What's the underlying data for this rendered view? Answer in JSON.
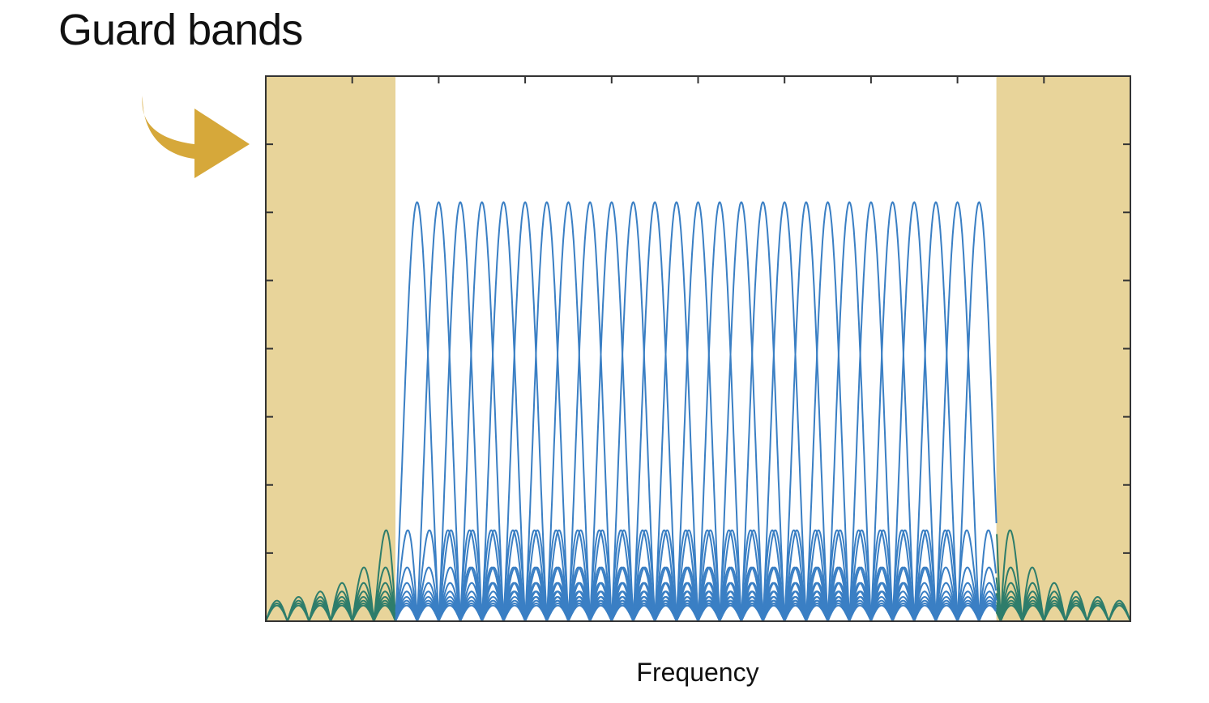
{
  "title": "Guard bands",
  "chart_data": {
    "type": "line",
    "title": "Guard bands",
    "xlabel": "Frequency",
    "ylabel": "",
    "xlim": [
      0,
      1
    ],
    "ylim": [
      0,
      8
    ],
    "grid": false,
    "n_subcarriers": 27,
    "subcarrier_centers": [
      0.175,
      0.2,
      0.225,
      0.25,
      0.275,
      0.3,
      0.325,
      0.35,
      0.375,
      0.4,
      0.425,
      0.45,
      0.475,
      0.5,
      0.525,
      0.55,
      0.575,
      0.6,
      0.625,
      0.65,
      0.675,
      0.7,
      0.725,
      0.75,
      0.775,
      0.8,
      0.825
    ],
    "subcarrier_peak": 6.15,
    "guard_bands": [
      {
        "start": 0.0,
        "end": 0.15
      },
      {
        "start": 0.845,
        "end": 1.0
      }
    ],
    "colors": {
      "subcarriers": "#3a7fc4",
      "leakage": "#2e7d6b",
      "guard_fill": "#e8d49a",
      "arrow": "#d6a83a"
    },
    "annotation": "guard band arrow pointing to left guard band"
  }
}
